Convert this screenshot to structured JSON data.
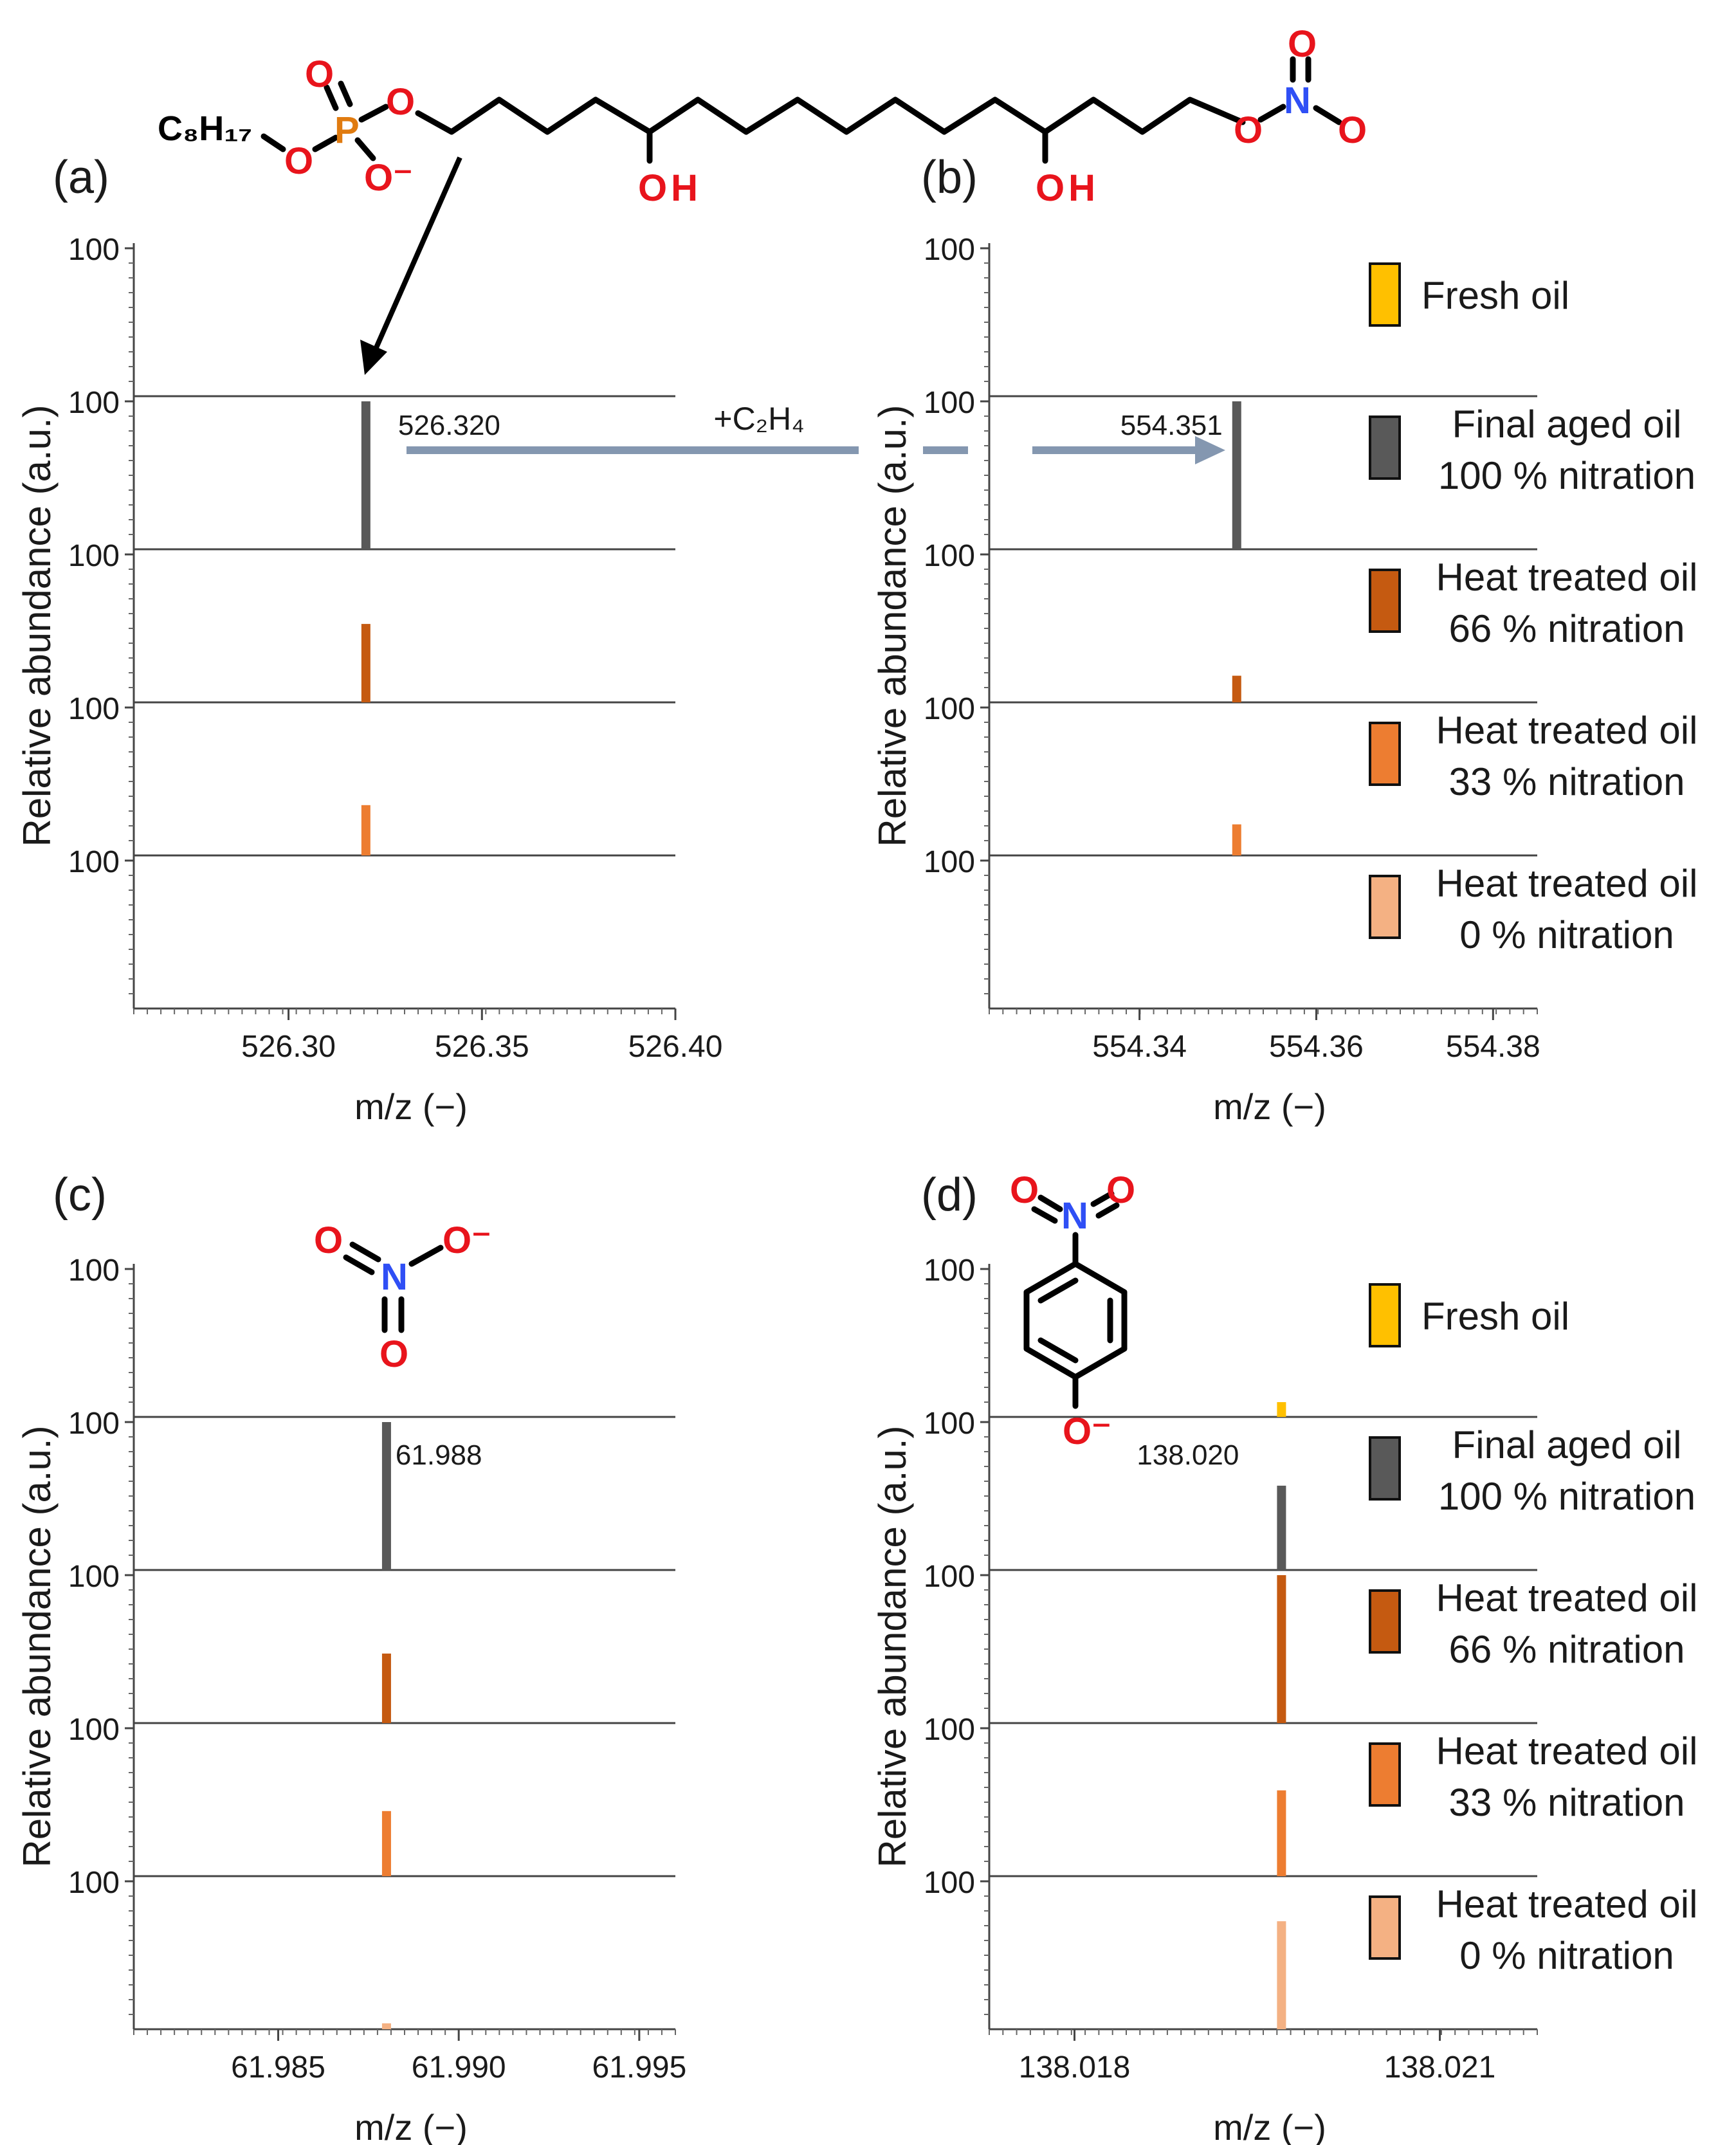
{
  "colors": {
    "fresh": "#ffc000",
    "aged": "#595959",
    "heat66": "#c55a11",
    "heat33": "#ed7d31",
    "heat0": "#f4b183",
    "arrow": "#8497b0",
    "arrow_text": "#44546a",
    "oxygen": "#e8141c",
    "nitrogen": "#2f4ff5",
    "phosphorus": "#e07b10"
  },
  "legend": [
    {
      "line1": "Fresh oil",
      "line2": "",
      "color": "#ffc000"
    },
    {
      "line1": "Final aged oil",
      "line2": "100 % nitration",
      "color": "#595959"
    },
    {
      "line1": "Heat treated oil",
      "line2": "66 % nitration",
      "color": "#c55a11"
    },
    {
      "line1": "Heat treated oil",
      "line2": "33 % nitration",
      "color": "#ed7d31"
    },
    {
      "line1": "Heat treated oil",
      "line2": "0 % nitration",
      "color": "#f4b183"
    }
  ],
  "arrow_label": "+C₂H₄",
  "molecules": {
    "top": {
      "c8h17": "C₈H₁₇",
      "o": "O",
      "p": "P",
      "o_minus": "O⁻",
      "oh": "OH",
      "n": "N"
    },
    "nitrate": {
      "o": "O",
      "o_minus": "O⁻",
      "n": "N"
    },
    "nitrophenolate": {
      "o": "O",
      "o_minus": "O⁻",
      "n": "N"
    }
  },
  "chart_data": [
    {
      "type": "bar",
      "panel": "(a)",
      "xlabel": "m/z (−)",
      "ylabel": "Relative abundance (a.u.)",
      "xlim": [
        526.26,
        526.4
      ],
      "xticks": [
        "526.30",
        "526.35",
        "526.40"
      ],
      "xtick_values": [
        526.3,
        526.35,
        526.4
      ],
      "ytick_label": "100",
      "peak_x": 526.32,
      "peak_label": "526.320",
      "label_series": 1,
      "series": [
        {
          "name": "Fresh oil",
          "value": 0
        },
        {
          "name": "Final aged oil 100 % nitration",
          "value": 100
        },
        {
          "name": "Heat treated oil 66 % nitration",
          "value": 53
        },
        {
          "name": "Heat treated oil 33 % nitration",
          "value": 34
        },
        {
          "name": "Heat treated oil 0 % nitration",
          "value": 0
        }
      ]
    },
    {
      "type": "bar",
      "panel": "(b)",
      "xlabel": "m/z (−)",
      "ylabel": "Relative abundance (a.u.)",
      "xlim": [
        554.323,
        554.385
      ],
      "xticks": [
        "554.34",
        "554.36",
        "554.38"
      ],
      "xtick_values": [
        554.34,
        554.36,
        554.38
      ],
      "ytick_label": "100",
      "peak_x": 554.351,
      "peak_label": "554.351",
      "label_series": 1,
      "series": [
        {
          "name": "Fresh oil",
          "value": 0
        },
        {
          "name": "Final aged oil 100 % nitration",
          "value": 100
        },
        {
          "name": "Heat treated oil 66 % nitration",
          "value": 18
        },
        {
          "name": "Heat treated oil 33 % nitration",
          "value": 21
        },
        {
          "name": "Heat treated oil 0 % nitration",
          "value": 0
        }
      ]
    },
    {
      "type": "bar",
      "panel": "(c)",
      "xlabel": "m/z (−)",
      "ylabel": "Relative abundance (a.u.)",
      "xlim": [
        61.981,
        61.996
      ],
      "xticks": [
        "61.985",
        "61.990",
        "61.995"
      ],
      "xtick_values": [
        61.985,
        61.99,
        61.995
      ],
      "ytick_label": "100",
      "peak_x": 61.988,
      "peak_label": "61.988",
      "label_series": 1,
      "series": [
        {
          "name": "Fresh oil",
          "value": 0
        },
        {
          "name": "Final aged oil 100 % nitration",
          "value": 100
        },
        {
          "name": "Heat treated oil 66 % nitration",
          "value": 47
        },
        {
          "name": "Heat treated oil 33 % nitration",
          "value": 44
        },
        {
          "name": "Heat treated oil 0 % nitration",
          "value": 4
        }
      ]
    },
    {
      "type": "bar",
      "panel": "(d)",
      "xlabel": "m/z (−)",
      "ylabel": "Relative abundance (a.u.)",
      "xlim": [
        138.0173,
        138.0218
      ],
      "xticks": [
        "138.018",
        "138.021"
      ],
      "xtick_values": [
        138.018,
        138.021
      ],
      "ytick_label": "100",
      "peak_x": 138.0197,
      "peak_label": "138.020",
      "label_series": 1,
      "series": [
        {
          "name": "Fresh oil",
          "value": 10
        },
        {
          "name": "Final aged oil 100 % nitration",
          "value": 57
        },
        {
          "name": "Heat treated oil 66 % nitration",
          "value": 100
        },
        {
          "name": "Heat treated oil 33 % nitration",
          "value": 58
        },
        {
          "name": "Heat treated oil 0 % nitration",
          "value": 73
        }
      ]
    }
  ]
}
